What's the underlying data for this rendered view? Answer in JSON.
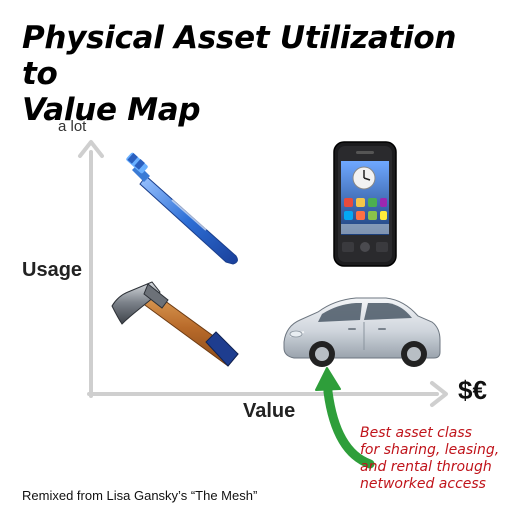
{
  "title": {
    "line1": "Physical Asset Utilization to",
    "line2": "Value Map"
  },
  "axes": {
    "y_top_label": "a lot",
    "y_label": "Usage",
    "x_label": "Value",
    "x_end_label": "$€"
  },
  "items": [
    {
      "name": "toothbrush",
      "usage": "high",
      "value": "low"
    },
    {
      "name": "smartphone",
      "usage": "high",
      "value": "high"
    },
    {
      "name": "hammer",
      "usage": "low",
      "value": "low"
    },
    {
      "name": "car",
      "usage": "low",
      "value": "high"
    }
  ],
  "callout": {
    "lines": [
      "Best asset class",
      "for sharing, leasing,",
      "and rental through",
      "networked access"
    ],
    "color": "#c0141b",
    "arrow_color": "#2e9e3a"
  },
  "credit": "Remixed from Lisa Gansky’s “The Mesh”"
}
